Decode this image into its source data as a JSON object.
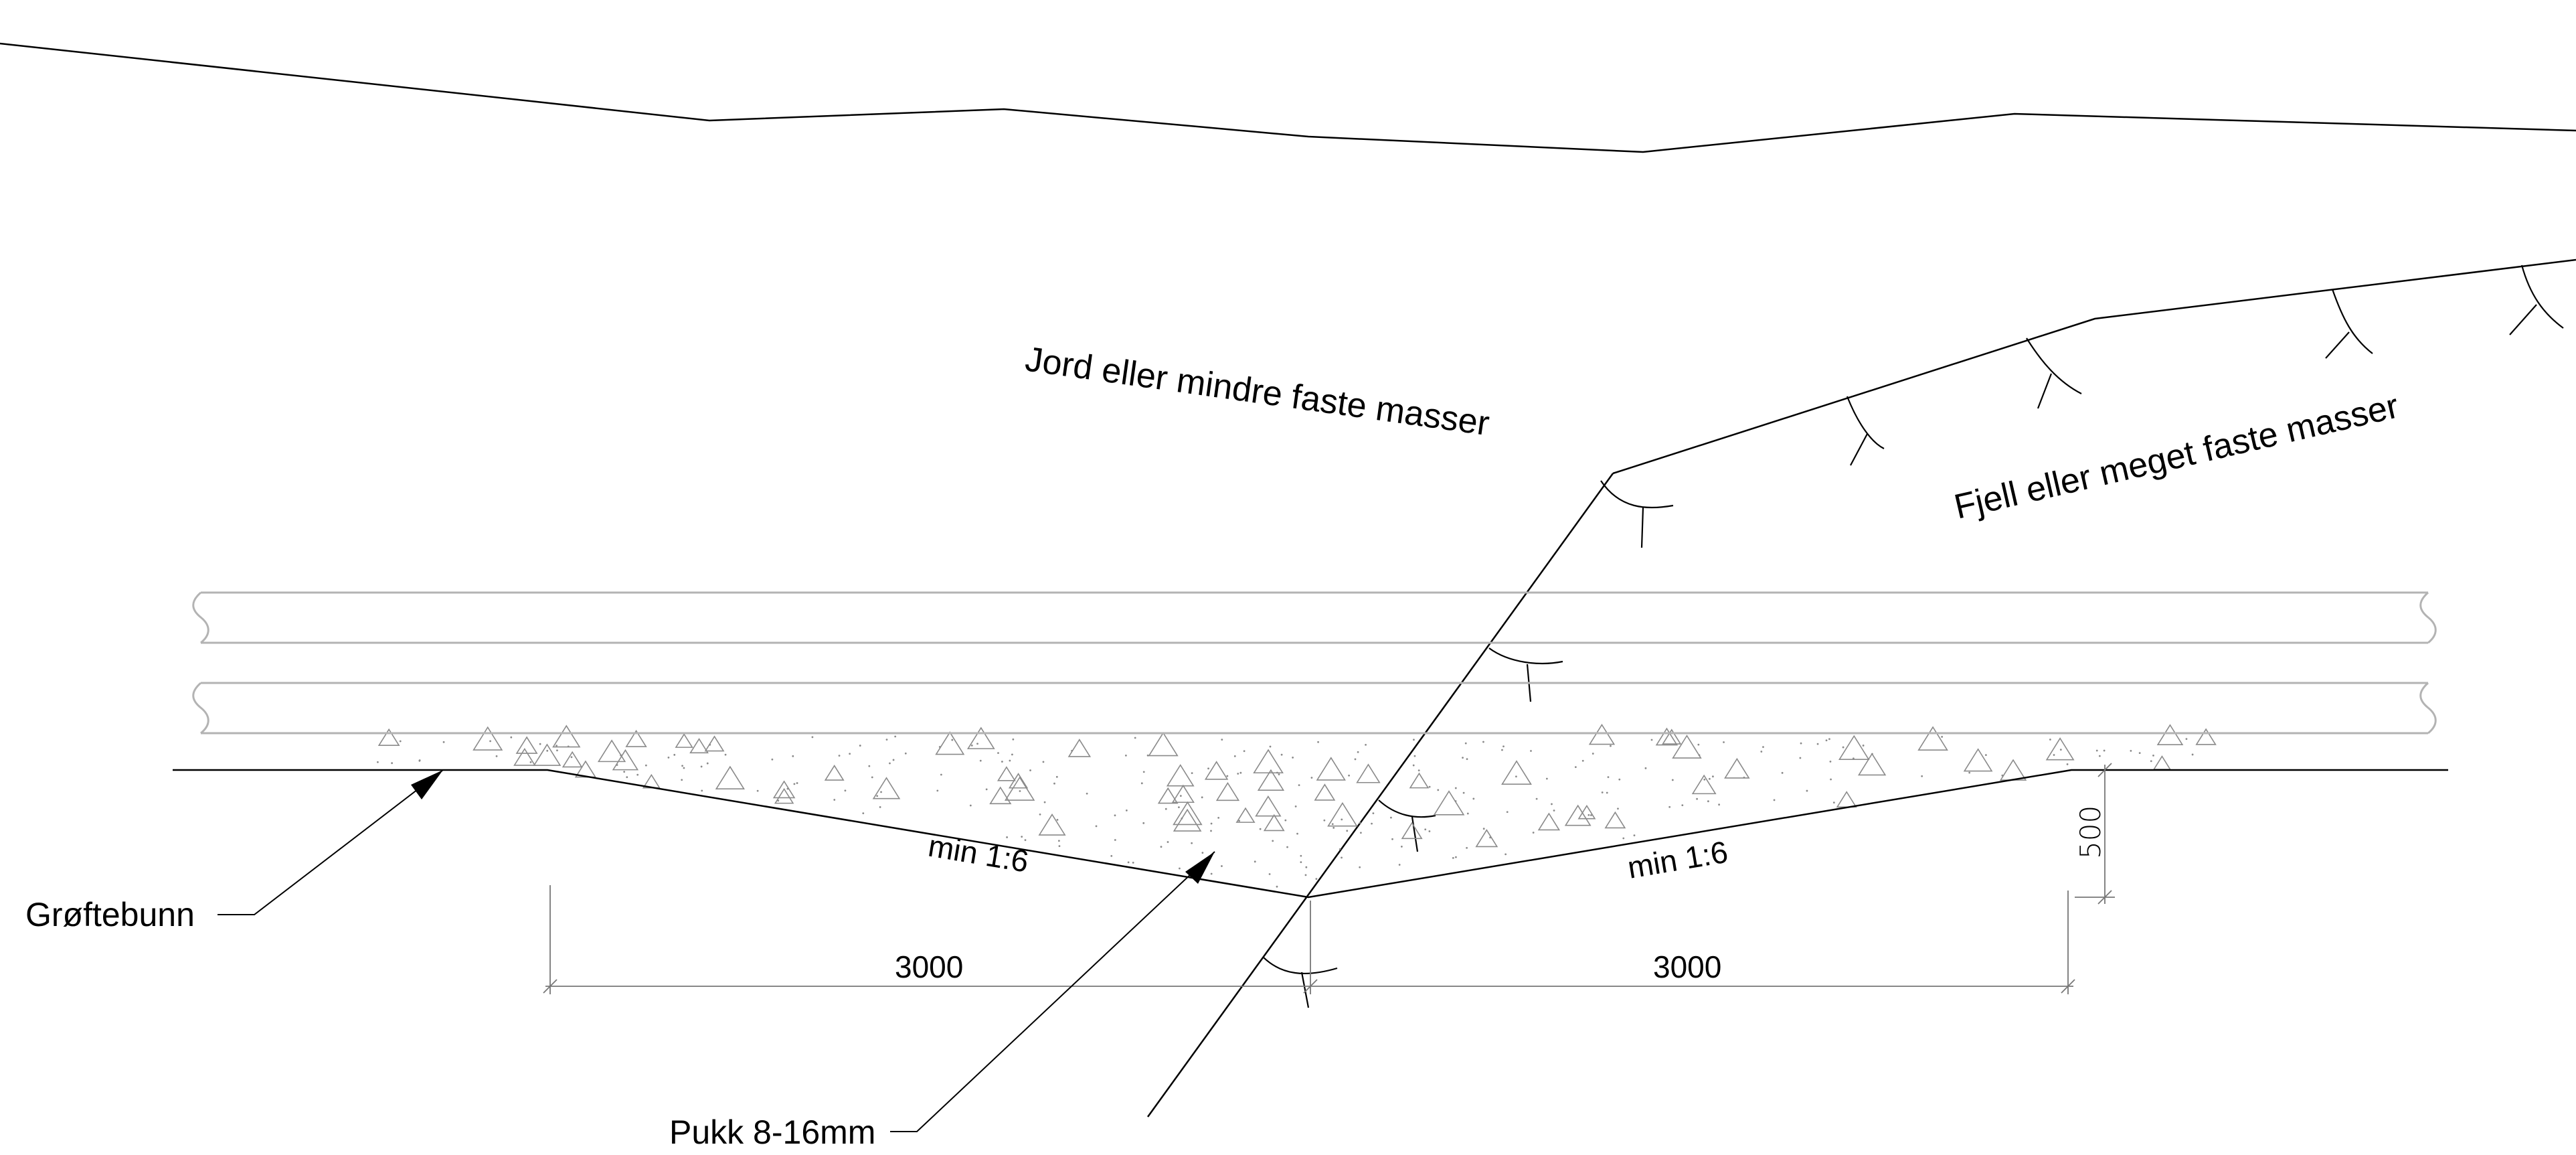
{
  "labels": {
    "soil": "Jord eller mindre faste masser",
    "rock": "Fjell eller meget faste masser",
    "trench_bottom": "Grøftebunn",
    "gravel": "Pukk 8-16mm",
    "slope_left": "min 1:6",
    "slope_right": "min 1:6",
    "dim_left": "3000",
    "dim_right": "3000",
    "dim_depth": "500"
  },
  "colors": {
    "line": "#000000",
    "pipe": "#b3b3b3",
    "dimension": "#888888",
    "fill_marks": "#9a9a9a"
  }
}
